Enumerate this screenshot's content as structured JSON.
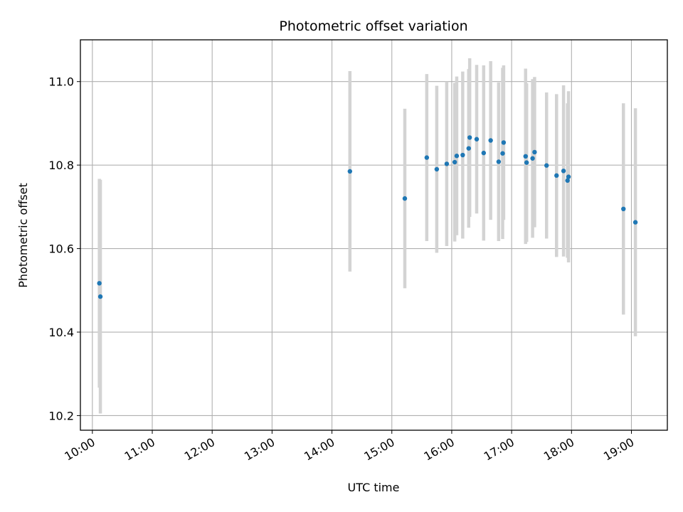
{
  "chart_data": {
    "type": "scatter",
    "title": "Photometric offset variation",
    "xlabel": "UTC time",
    "ylabel": "Photometric offset",
    "x_ticks": [
      "10:00",
      "11:00",
      "12:00",
      "13:00",
      "14:00",
      "15:00",
      "16:00",
      "17:00",
      "18:00",
      "19:00"
    ],
    "y_ticks": [
      "10.2",
      "10.4",
      "10.6",
      "10.8",
      "11.0"
    ],
    "xlim": [
      "09:48",
      "19:36"
    ],
    "ylim": [
      10.165,
      11.1
    ],
    "grid": true,
    "errorbar_color": "#d3d3d3",
    "point_color": "#1f77b4",
    "points": [
      {
        "x": "10:07",
        "y": 10.517,
        "err": 0.25
      },
      {
        "x": "10:08",
        "y": 10.485,
        "err": 0.28
      },
      {
        "x": "14:18",
        "y": 10.785,
        "err": 0.24
      },
      {
        "x": "15:13",
        "y": 10.72,
        "err": 0.215
      },
      {
        "x": "15:35",
        "y": 10.818,
        "err": 0.2
      },
      {
        "x": "15:45",
        "y": 10.79,
        "err": 0.2
      },
      {
        "x": "15:55",
        "y": 10.803,
        "err": 0.197
      },
      {
        "x": "16:03",
        "y": 10.807,
        "err": 0.19
      },
      {
        "x": "16:05",
        "y": 10.822,
        "err": 0.19
      },
      {
        "x": "16:11",
        "y": 10.824,
        "err": 0.2
      },
      {
        "x": "16:17",
        "y": 10.84,
        "err": 0.19
      },
      {
        "x": "16:18",
        "y": 10.866,
        "err": 0.19
      },
      {
        "x": "16:25",
        "y": 10.862,
        "err": 0.178
      },
      {
        "x": "16:32",
        "y": 10.829,
        "err": 0.21
      },
      {
        "x": "16:39",
        "y": 10.859,
        "err": 0.19
      },
      {
        "x": "16:47",
        "y": 10.808,
        "err": 0.19
      },
      {
        "x": "16:51",
        "y": 10.828,
        "err": 0.205
      },
      {
        "x": "16:52",
        "y": 10.854,
        "err": 0.185
      },
      {
        "x": "17:14",
        "y": 10.821,
        "err": 0.21
      },
      {
        "x": "17:15",
        "y": 10.806,
        "err": 0.19
      },
      {
        "x": "17:21",
        "y": 10.816,
        "err": 0.19
      },
      {
        "x": "17:23",
        "y": 10.831,
        "err": 0.18
      },
      {
        "x": "17:35",
        "y": 10.799,
        "err": 0.175
      },
      {
        "x": "17:45",
        "y": 10.775,
        "err": 0.195
      },
      {
        "x": "17:52",
        "y": 10.786,
        "err": 0.205
      },
      {
        "x": "17:56",
        "y": 10.763,
        "err": 0.185
      },
      {
        "x": "17:57",
        "y": 10.772,
        "err": 0.205
      },
      {
        "x": "18:52",
        "y": 10.695,
        "err": 0.253
      },
      {
        "x": "19:04",
        "y": 10.663,
        "err": 0.273
      }
    ]
  }
}
